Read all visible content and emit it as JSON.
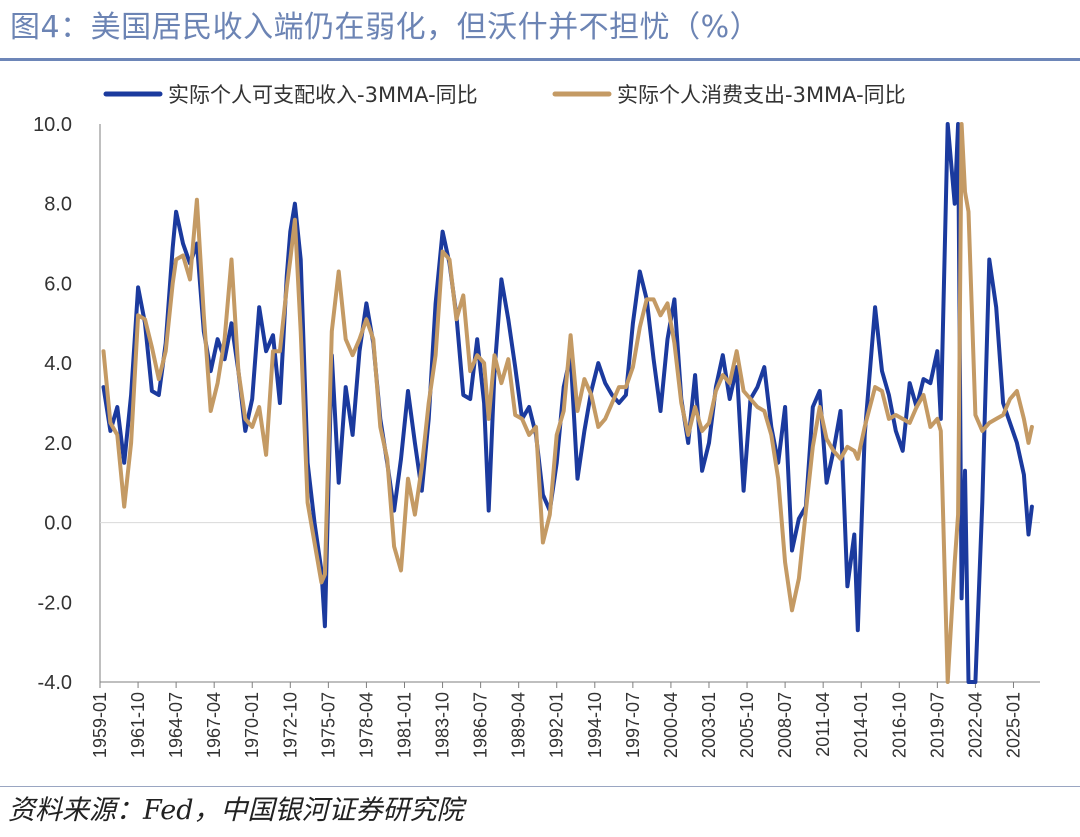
{
  "header": {
    "title": "图4：美国居民收入端仍在弱化，但沃什并不担忧（%）"
  },
  "footer": {
    "source": "资料来源：Fed，中国银河证券研究院"
  },
  "colors": {
    "title": "#6c84b4",
    "series_income": "#1b3a9e",
    "series_consumption": "#c49a64",
    "axis": "#7f7f7f",
    "grid": "#d9d9d9"
  },
  "chart_data": {
    "type": "line",
    "title": "",
    "xlabel": "",
    "ylabel": "",
    "ylim": [
      -4.0,
      10.0
    ],
    "yticks": [
      -4.0,
      -2.0,
      0.0,
      2.0,
      4.0,
      6.0,
      8.0,
      10.0
    ],
    "ytick_labels": [
      "-4.0",
      "-2.0",
      "0.0",
      "2.0",
      "4.0",
      "6.0",
      "8.0",
      "10.0"
    ],
    "xlim": [
      "1959-01",
      "2026-12"
    ],
    "xtick_labels": [
      "1959-01",
      "1961-10",
      "1964-07",
      "1967-04",
      "1970-01",
      "1972-10",
      "1975-07",
      "1978-04",
      "1981-01",
      "1983-10",
      "1986-07",
      "1989-04",
      "1992-01",
      "1994-10",
      "1997-07",
      "2000-04",
      "2003-01",
      "2005-10",
      "2008-07",
      "2011-04",
      "2014-01",
      "2016-10",
      "2019-07",
      "2022-04",
      "2025-01"
    ],
    "grid": false,
    "legend_position": "top",
    "series": [
      {
        "name": "实际个人可支配收入-3MMA-同比",
        "color": "#1b3a9e",
        "points": [
          [
            "1959-04",
            3.4
          ],
          [
            "1959-10",
            2.3
          ],
          [
            "1960-04",
            2.9
          ],
          [
            "1960-10",
            1.5
          ],
          [
            "1961-04",
            3.2
          ],
          [
            "1961-10",
            5.9
          ],
          [
            "1962-04",
            5.0
          ],
          [
            "1962-10",
            3.3
          ],
          [
            "1963-04",
            3.2
          ],
          [
            "1963-10",
            4.5
          ],
          [
            "1964-04",
            6.9
          ],
          [
            "1964-07",
            7.8
          ],
          [
            "1965-01",
            7.0
          ],
          [
            "1965-07",
            6.5
          ],
          [
            "1966-01",
            7.0
          ],
          [
            "1966-07",
            4.8
          ],
          [
            "1967-01",
            3.8
          ],
          [
            "1967-07",
            4.6
          ],
          [
            "1968-01",
            4.1
          ],
          [
            "1968-07",
            5.0
          ],
          [
            "1969-01",
            3.8
          ],
          [
            "1969-07",
            2.3
          ],
          [
            "1970-01",
            3.1
          ],
          [
            "1970-07",
            5.4
          ],
          [
            "1971-01",
            4.3
          ],
          [
            "1971-07",
            4.7
          ],
          [
            "1972-01",
            3.0
          ],
          [
            "1972-07",
            6.2
          ],
          [
            "1972-10",
            7.3
          ],
          [
            "1973-02",
            8.0
          ],
          [
            "1973-07",
            6.6
          ],
          [
            "1974-01",
            1.5
          ],
          [
            "1974-07",
            0.0
          ],
          [
            "1975-01",
            -1.2
          ],
          [
            "1975-04",
            -2.6
          ],
          [
            "1975-10",
            4.2
          ],
          [
            "1976-04",
            1.0
          ],
          [
            "1976-10",
            3.4
          ],
          [
            "1977-04",
            2.2
          ],
          [
            "1977-10",
            4.3
          ],
          [
            "1978-04",
            5.5
          ],
          [
            "1978-10",
            4.5
          ],
          [
            "1979-04",
            2.6
          ],
          [
            "1979-10",
            1.5
          ],
          [
            "1980-04",
            0.3
          ],
          [
            "1980-10",
            1.6
          ],
          [
            "1981-04",
            3.3
          ],
          [
            "1981-10",
            2.0
          ],
          [
            "1982-04",
            0.8
          ],
          [
            "1982-10",
            2.6
          ],
          [
            "1983-04",
            5.5
          ],
          [
            "1983-10",
            7.3
          ],
          [
            "1984-04",
            6.5
          ],
          [
            "1984-10",
            5.2
          ],
          [
            "1985-04",
            3.2
          ],
          [
            "1985-10",
            3.1
          ],
          [
            "1986-04",
            4.6
          ],
          [
            "1986-10",
            3.0
          ],
          [
            "1987-02",
            0.3
          ],
          [
            "1987-07",
            3.8
          ],
          [
            "1988-01",
            6.1
          ],
          [
            "1988-07",
            5.1
          ],
          [
            "1989-01",
            3.9
          ],
          [
            "1989-07",
            2.6
          ],
          [
            "1990-01",
            2.9
          ],
          [
            "1990-07",
            2.2
          ],
          [
            "1991-01",
            0.7
          ],
          [
            "1991-07",
            0.3
          ],
          [
            "1992-01",
            1.5
          ],
          [
            "1992-07",
            3.4
          ],
          [
            "1993-01",
            4.2
          ],
          [
            "1993-07",
            1.1
          ],
          [
            "1994-01",
            2.3
          ],
          [
            "1994-07",
            3.3
          ],
          [
            "1995-01",
            4.0
          ],
          [
            "1995-07",
            3.5
          ],
          [
            "1996-01",
            3.2
          ],
          [
            "1996-07",
            3.0
          ],
          [
            "1997-01",
            3.2
          ],
          [
            "1997-07",
            5.0
          ],
          [
            "1998-01",
            6.3
          ],
          [
            "1998-07",
            5.6
          ],
          [
            "1999-01",
            4.1
          ],
          [
            "1999-07",
            2.8
          ],
          [
            "2000-01",
            4.6
          ],
          [
            "2000-07",
            5.6
          ],
          [
            "2001-01",
            3.1
          ],
          [
            "2001-07",
            2.0
          ],
          [
            "2002-01",
            3.7
          ],
          [
            "2002-07",
            1.3
          ],
          [
            "2003-01",
            2.0
          ],
          [
            "2003-07",
            3.4
          ],
          [
            "2004-01",
            4.2
          ],
          [
            "2004-07",
            3.1
          ],
          [
            "2005-01",
            3.9
          ],
          [
            "2005-07",
            0.8
          ],
          [
            "2006-01",
            3.1
          ],
          [
            "2006-07",
            3.4
          ],
          [
            "2007-01",
            3.9
          ],
          [
            "2007-07",
            2.4
          ],
          [
            "2008-01",
            1.5
          ],
          [
            "2008-07",
            2.9
          ],
          [
            "2009-01",
            -0.7
          ],
          [
            "2009-07",
            0.1
          ],
          [
            "2010-01",
            0.4
          ],
          [
            "2010-07",
            2.9
          ],
          [
            "2011-01",
            3.3
          ],
          [
            "2011-07",
            1.0
          ],
          [
            "2012-01",
            1.8
          ],
          [
            "2012-07",
            2.8
          ],
          [
            "2013-01",
            -1.6
          ],
          [
            "2013-07",
            -0.3
          ],
          [
            "2013-10",
            -2.7
          ],
          [
            "2014-04",
            2.2
          ],
          [
            "2015-01",
            5.4
          ],
          [
            "2015-07",
            3.8
          ],
          [
            "2016-01",
            3.2
          ],
          [
            "2016-07",
            2.3
          ],
          [
            "2017-01",
            1.8
          ],
          [
            "2017-07",
            3.5
          ],
          [
            "2018-01",
            2.9
          ],
          [
            "2018-07",
            3.6
          ],
          [
            "2019-01",
            3.5
          ],
          [
            "2019-07",
            4.3
          ],
          [
            "2019-10",
            2.6
          ],
          [
            "2020-04",
            10.0
          ],
          [
            "2020-10",
            8.0
          ],
          [
            "2021-01",
            10.0
          ],
          [
            "2021-04",
            -1.9
          ],
          [
            "2021-07",
            1.3
          ],
          [
            "2021-10",
            -4.0
          ],
          [
            "2022-04",
            -4.0
          ],
          [
            "2022-10",
            0.5
          ],
          [
            "2023-04",
            6.6
          ],
          [
            "2023-10",
            5.4
          ],
          [
            "2024-04",
            3.0
          ],
          [
            "2024-10",
            2.5
          ],
          [
            "2025-04",
            2.0
          ],
          [
            "2025-10",
            1.2
          ],
          [
            "2026-02",
            -0.3
          ],
          [
            "2026-05",
            0.4
          ]
        ]
      },
      {
        "name": "实际个人消费支出-3MMA-同比",
        "color": "#c49a64",
        "points": [
          [
            "1959-04",
            4.3
          ],
          [
            "1959-10",
            2.5
          ],
          [
            "1960-04",
            2.2
          ],
          [
            "1960-10",
            0.4
          ],
          [
            "1961-04",
            2.0
          ],
          [
            "1961-10",
            5.2
          ],
          [
            "1962-04",
            5.1
          ],
          [
            "1962-10",
            4.4
          ],
          [
            "1963-04",
            3.6
          ],
          [
            "1963-10",
            4.3
          ],
          [
            "1964-04",
            6.0
          ],
          [
            "1964-07",
            6.6
          ],
          [
            "1965-01",
            6.7
          ],
          [
            "1965-07",
            6.1
          ],
          [
            "1966-01",
            8.1
          ],
          [
            "1966-07",
            5.2
          ],
          [
            "1967-01",
            2.8
          ],
          [
            "1967-07",
            3.5
          ],
          [
            "1968-01",
            4.6
          ],
          [
            "1968-07",
            6.6
          ],
          [
            "1969-01",
            3.8
          ],
          [
            "1969-07",
            2.6
          ],
          [
            "1970-01",
            2.4
          ],
          [
            "1970-07",
            2.9
          ],
          [
            "1971-01",
            1.7
          ],
          [
            "1971-07",
            4.3
          ],
          [
            "1972-01",
            4.3
          ],
          [
            "1972-07",
            5.9
          ],
          [
            "1972-10",
            6.6
          ],
          [
            "1973-02",
            7.6
          ],
          [
            "1973-07",
            4.8
          ],
          [
            "1974-01",
            0.5
          ],
          [
            "1974-07",
            -0.5
          ],
          [
            "1975-01",
            -1.5
          ],
          [
            "1975-04",
            -1.3
          ],
          [
            "1975-10",
            4.8
          ],
          [
            "1976-04",
            6.3
          ],
          [
            "1976-10",
            4.6
          ],
          [
            "1977-04",
            4.2
          ],
          [
            "1977-10",
            4.6
          ],
          [
            "1978-04",
            5.1
          ],
          [
            "1978-10",
            4.6
          ],
          [
            "1979-04",
            2.4
          ],
          [
            "1979-10",
            1.6
          ],
          [
            "1980-04",
            -0.6
          ],
          [
            "1980-10",
            -1.2
          ],
          [
            "1981-04",
            1.1
          ],
          [
            "1981-10",
            0.2
          ],
          [
            "1982-04",
            1.4
          ],
          [
            "1982-10",
            3.0
          ],
          [
            "1983-04",
            4.2
          ],
          [
            "1983-10",
            6.8
          ],
          [
            "1984-04",
            6.6
          ],
          [
            "1984-10",
            5.1
          ],
          [
            "1985-04",
            5.7
          ],
          [
            "1985-10",
            3.8
          ],
          [
            "1986-04",
            4.2
          ],
          [
            "1986-10",
            4.0
          ],
          [
            "1987-02",
            2.6
          ],
          [
            "1987-07",
            4.2
          ],
          [
            "1988-01",
            3.5
          ],
          [
            "1988-07",
            4.1
          ],
          [
            "1989-01",
            2.7
          ],
          [
            "1989-07",
            2.6
          ],
          [
            "1990-01",
            2.2
          ],
          [
            "1990-07",
            2.4
          ],
          [
            "1991-01",
            -0.5
          ],
          [
            "1991-07",
            0.2
          ],
          [
            "1992-01",
            2.2
          ],
          [
            "1992-07",
            2.8
          ],
          [
            "1993-01",
            4.7
          ],
          [
            "1993-07",
            2.8
          ],
          [
            "1994-01",
            3.6
          ],
          [
            "1994-07",
            3.2
          ],
          [
            "1995-01",
            2.4
          ],
          [
            "1995-07",
            2.6
          ],
          [
            "1996-01",
            3.0
          ],
          [
            "1996-07",
            3.4
          ],
          [
            "1997-01",
            3.4
          ],
          [
            "1997-07",
            3.9
          ],
          [
            "1998-01",
            4.9
          ],
          [
            "1998-07",
            5.6
          ],
          [
            "1999-01",
            5.6
          ],
          [
            "1999-07",
            5.2
          ],
          [
            "2000-01",
            5.5
          ],
          [
            "2000-07",
            4.5
          ],
          [
            "2001-01",
            3.0
          ],
          [
            "2001-07",
            2.2
          ],
          [
            "2002-01",
            2.9
          ],
          [
            "2002-07",
            2.3
          ],
          [
            "2003-01",
            2.5
          ],
          [
            "2003-07",
            3.3
          ],
          [
            "2004-01",
            3.7
          ],
          [
            "2004-07",
            3.5
          ],
          [
            "2005-01",
            4.3
          ],
          [
            "2005-07",
            3.3
          ],
          [
            "2006-01",
            3.1
          ],
          [
            "2006-07",
            2.9
          ],
          [
            "2007-01",
            2.8
          ],
          [
            "2007-07",
            2.2
          ],
          [
            "2008-01",
            1.1
          ],
          [
            "2008-07",
            -1.0
          ],
          [
            "2009-01",
            -2.2
          ],
          [
            "2009-07",
            -1.4
          ],
          [
            "2010-01",
            0.3
          ],
          [
            "2010-07",
            1.9
          ],
          [
            "2011-01",
            2.9
          ],
          [
            "2011-07",
            2.1
          ],
          [
            "2012-01",
            1.8
          ],
          [
            "2012-07",
            1.6
          ],
          [
            "2013-01",
            1.9
          ],
          [
            "2013-07",
            1.8
          ],
          [
            "2013-10",
            1.6
          ],
          [
            "2014-04",
            2.4
          ],
          [
            "2015-01",
            3.4
          ],
          [
            "2015-07",
            3.3
          ],
          [
            "2016-01",
            2.6
          ],
          [
            "2016-07",
            2.7
          ],
          [
            "2017-01",
            2.6
          ],
          [
            "2017-07",
            2.5
          ],
          [
            "2018-01",
            2.9
          ],
          [
            "2018-07",
            3.2
          ],
          [
            "2019-01",
            2.4
          ],
          [
            "2019-07",
            2.6
          ],
          [
            "2019-10",
            2.3
          ],
          [
            "2020-04",
            -4.0
          ],
          [
            "2020-10",
            -1.0
          ],
          [
            "2021-01",
            0.2
          ],
          [
            "2021-04",
            10.0
          ],
          [
            "2021-07",
            8.3
          ],
          [
            "2021-10",
            7.8
          ],
          [
            "2022-04",
            2.7
          ],
          [
            "2022-10",
            2.3
          ],
          [
            "2023-04",
            2.5
          ],
          [
            "2023-10",
            2.6
          ],
          [
            "2024-04",
            2.7
          ],
          [
            "2024-10",
            3.1
          ],
          [
            "2025-04",
            3.3
          ],
          [
            "2025-10",
            2.6
          ],
          [
            "2026-02",
            2.0
          ],
          [
            "2026-05",
            2.4
          ]
        ]
      }
    ]
  }
}
